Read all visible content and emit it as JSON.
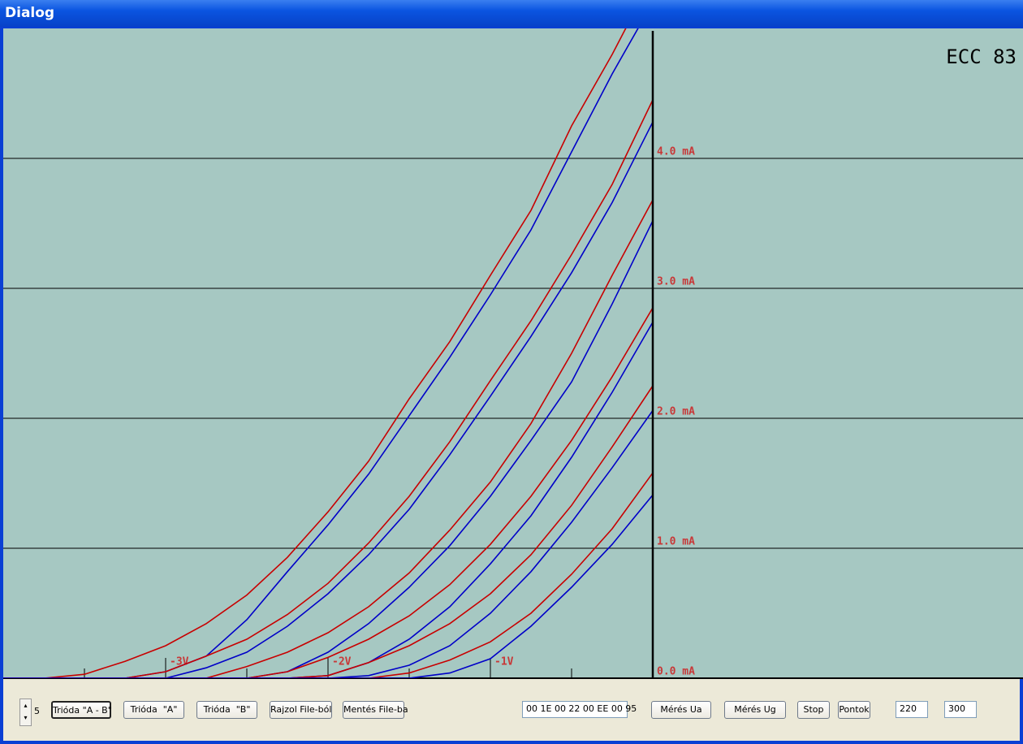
{
  "window": {
    "title": "Dialog"
  },
  "chart_data": {
    "type": "line",
    "title": "ECC 83",
    "x": [
      -4,
      -3.75,
      -3.5,
      -3.25,
      -3,
      -2.75,
      -2.5,
      -2.25,
      -2,
      -1.75,
      -1.5,
      -1.25,
      -1,
      -0.75,
      -0.5,
      -0.25,
      0
    ],
    "series": [
      {
        "color": "#c80000",
        "values": [
          0,
          0,
          0.03,
          0.13,
          0.25,
          0.42,
          0.64,
          0.93,
          1.28,
          1.67,
          2.15,
          2.59,
          3.1,
          3.6,
          4.25,
          4.8,
          5.4
        ]
      },
      {
        "color": "#0000c8",
        "values": [
          0,
          0,
          0,
          0,
          0.05,
          0.17,
          0.45,
          0.82,
          1.18,
          1.57,
          2.02,
          2.47,
          2.95,
          3.45,
          4.05,
          4.65,
          5.2
        ]
      },
      {
        "color": "#c80000",
        "values": [
          0,
          0,
          0,
          0,
          0.05,
          0.17,
          0.3,
          0.49,
          0.73,
          1.04,
          1.4,
          1.82,
          2.29,
          2.75,
          3.26,
          3.8,
          4.45
        ]
      },
      {
        "color": "#0000c8",
        "values": [
          0,
          0,
          0,
          0,
          0,
          0.08,
          0.2,
          0.4,
          0.65,
          0.95,
          1.3,
          1.72,
          2.17,
          2.63,
          3.12,
          3.66,
          4.28
        ]
      },
      {
        "color": "#c80000",
        "values": [
          0,
          0,
          0,
          0,
          0,
          0,
          0.09,
          0.2,
          0.35,
          0.55,
          0.81,
          1.14,
          1.51,
          1.96,
          2.5,
          3.1,
          3.68
        ]
      },
      {
        "color": "#0000c8",
        "values": [
          0,
          0,
          0,
          0,
          0,
          0,
          0,
          0.05,
          0.2,
          0.42,
          0.7,
          1.02,
          1.4,
          1.83,
          2.28,
          2.88,
          3.52
        ]
      },
      {
        "color": "#c80000",
        "values": [
          0,
          0,
          0,
          0,
          0,
          0,
          0,
          0.05,
          0.16,
          0.3,
          0.48,
          0.72,
          1.03,
          1.4,
          1.83,
          2.32,
          2.85
        ]
      },
      {
        "color": "#0000c8",
        "values": [
          0,
          0,
          0,
          0,
          0,
          0,
          0,
          0,
          0.02,
          0.12,
          0.3,
          0.55,
          0.88,
          1.25,
          1.7,
          2.2,
          2.74
        ]
      },
      {
        "color": "#c80000",
        "values": [
          0,
          0,
          0,
          0,
          0,
          0,
          0,
          0,
          0.02,
          0.12,
          0.25,
          0.42,
          0.65,
          0.95,
          1.33,
          1.78,
          2.25
        ]
      },
      {
        "color": "#0000c8",
        "values": [
          0,
          0,
          0,
          0,
          0,
          0,
          0,
          0,
          0,
          0.02,
          0.1,
          0.25,
          0.5,
          0.82,
          1.2,
          1.62,
          2.06
        ]
      },
      {
        "color": "#c80000",
        "values": [
          0,
          0,
          0,
          0,
          0,
          0,
          0,
          0,
          0,
          0,
          0.04,
          0.14,
          0.28,
          0.5,
          0.8,
          1.15,
          1.58
        ]
      },
      {
        "color": "#0000c8",
        "values": [
          0,
          0,
          0,
          0,
          0,
          0,
          0,
          0,
          0,
          0,
          0,
          0.04,
          0.15,
          0.4,
          0.7,
          1.03,
          1.41
        ]
      }
    ],
    "xlim": [
      -4,
      2.28
    ],
    "ylim": [
      0,
      5
    ],
    "xticks": [
      {
        "value": -3,
        "label": "-3V"
      },
      {
        "value": -2,
        "label": "-2V"
      },
      {
        "value": -1,
        "label": "-1V"
      }
    ],
    "xticks_minor": [
      -3.5,
      -2.5,
      -1.5,
      -0.5
    ],
    "yticks": [
      {
        "value": 0,
        "label": "0.0 mA"
      },
      {
        "value": 1,
        "label": "1.0 mA"
      },
      {
        "value": 2,
        "label": "2.0 mA"
      },
      {
        "value": 3,
        "label": "3.0 mA"
      },
      {
        "value": 4,
        "label": "4.0 mA"
      }
    ],
    "grid": true
  },
  "controls": {
    "spinner": "5",
    "buttons": [
      "Trióda \"A - B\"",
      "Trióda  \"A\"",
      "Trióda  \"B\"",
      "Rajzol File-ból",
      "Mentés File-ba"
    ],
    "hex_field": "00 1E 00 22 00 EE 00 95",
    "buttons2": [
      "Mérés Ua",
      "Mérés Ug",
      "Stop",
      "Pontok"
    ],
    "fields": [
      "220",
      "300"
    ]
  }
}
